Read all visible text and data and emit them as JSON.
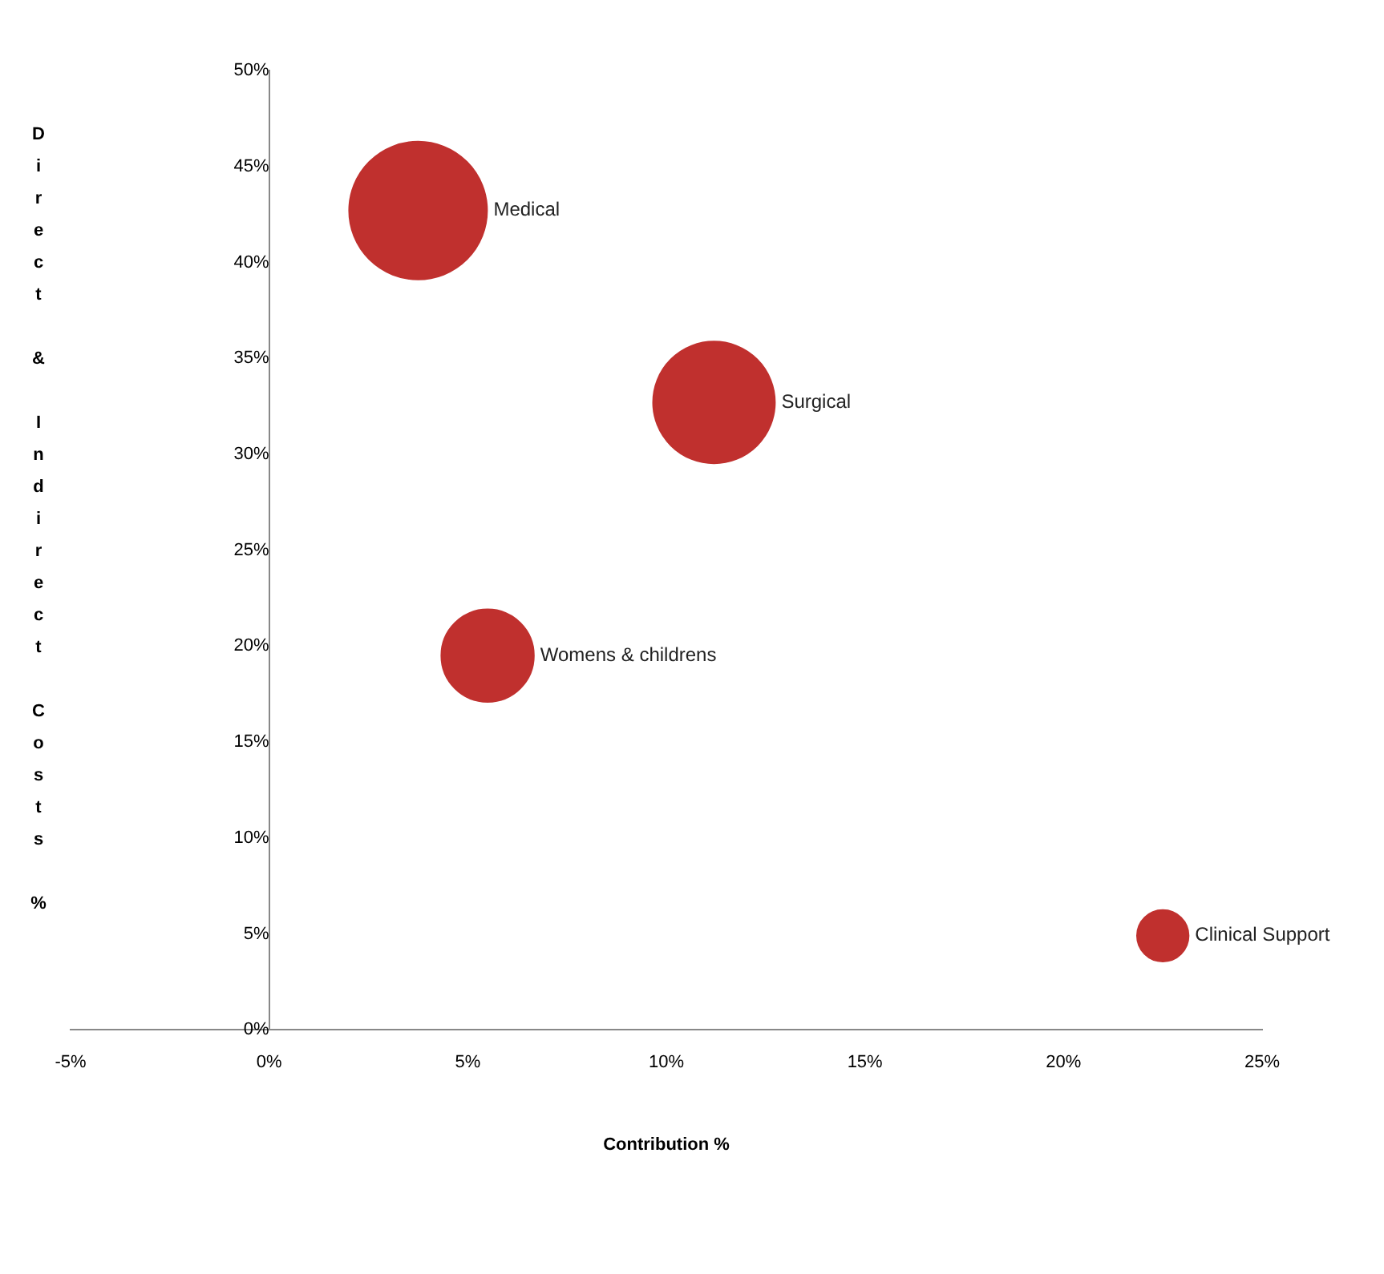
{
  "chart_data": {
    "type": "bubble",
    "xlabel": "Contribution %",
    "ylabel": "Direct & Indirect Costs %",
    "xlim": [
      -5,
      25
    ],
    "xticks": [
      {
        "value": -5,
        "label": "-5%"
      },
      {
        "value": 0,
        "label": "0%"
      },
      {
        "value": 5,
        "label": "5%"
      },
      {
        "value": 10,
        "label": "10%"
      },
      {
        "value": 15,
        "label": "15%"
      },
      {
        "value": 20,
        "label": "20%"
      },
      {
        "value": 25,
        "label": "25%"
      }
    ],
    "ylim": [
      0,
      50
    ],
    "yticks": [
      {
        "value": 0,
        "label": "0%"
      },
      {
        "value": 5,
        "label": "5%"
      },
      {
        "value": 10,
        "label": "10%"
      },
      {
        "value": 15,
        "label": "15%"
      },
      {
        "value": 20,
        "label": "20%"
      },
      {
        "value": 25,
        "label": "25%"
      },
      {
        "value": 30,
        "label": "30%"
      },
      {
        "value": 35,
        "label": "35%"
      },
      {
        "value": 40,
        "label": "40%"
      },
      {
        "value": 45,
        "label": "45%"
      },
      {
        "value": 50,
        "label": "50%"
      }
    ],
    "grid": false,
    "legend": false,
    "series": [
      {
        "name": "Medical",
        "color": "#c0302e",
        "x": [
          3.75
        ],
        "values": [
          42.7
        ],
        "sizes": [
          1
        ]
      },
      {
        "name": "Surgical",
        "color": "#c0302e",
        "x": [
          11.2
        ],
        "values": [
          32.7
        ],
        "sizes": [
          0.78
        ]
      },
      {
        "name": "Womens & childrens",
        "color": "#c0302e",
        "x": [
          5.5
        ],
        "values": [
          19.5
        ],
        "sizes": [
          0.45
        ]
      },
      {
        "name": "Clinical Support",
        "color": "#c0302e",
        "x": [
          22.5
        ],
        "values": [
          4.9
        ],
        "sizes": [
          0.14
        ]
      }
    ]
  }
}
